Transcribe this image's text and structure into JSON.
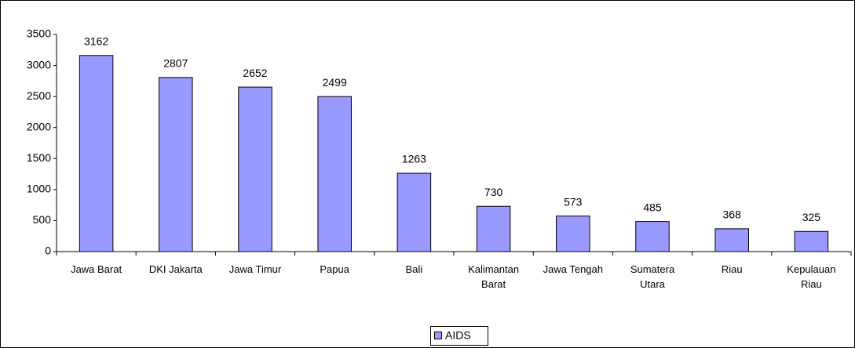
{
  "chart_data": {
    "type": "bar",
    "categories": [
      "Jawa Barat",
      "DKI Jakarta",
      "Jawa Timur",
      "Papua",
      "Bali",
      "Kalimantan Barat",
      "Jawa Tengah",
      "Sumatera Utara",
      "Riau",
      "Kepulauan Riau"
    ],
    "series": [
      {
        "name": "AIDS",
        "color": "#9999ff",
        "values": [
          3162,
          2807,
          2652,
          2499,
          1263,
          730,
          573,
          485,
          368,
          325
        ]
      }
    ],
    "ylim": [
      0,
      3500
    ],
    "yticks": [
      0,
      500,
      1000,
      1500,
      2000,
      2500,
      3000,
      3500
    ],
    "grid": false,
    "legend": "bottom"
  }
}
